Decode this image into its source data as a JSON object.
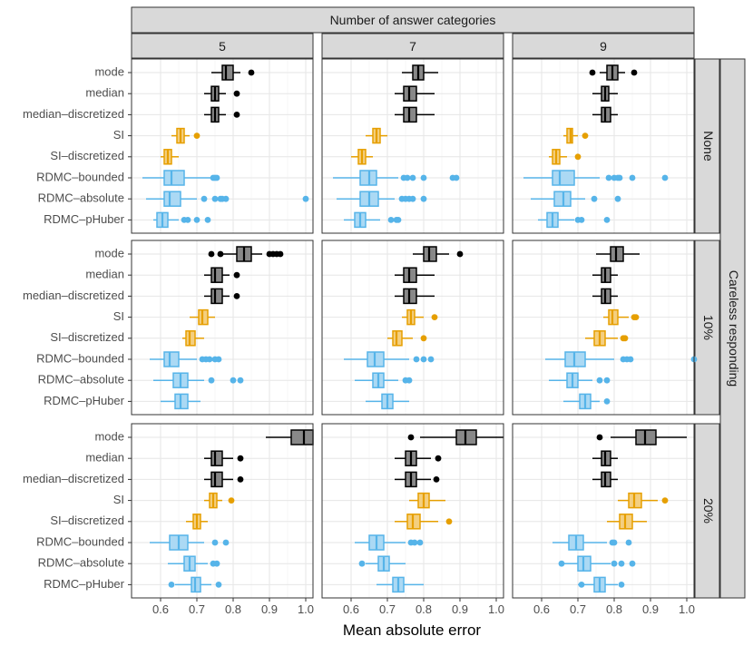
{
  "chart_data": {
    "type": "boxplot",
    "xlabel": "Mean absolute error",
    "column_facet_title": "Number of answer categories",
    "row_facet_title": "Careless responding",
    "columns": [
      "5",
      "7",
      "9"
    ],
    "rows": [
      "None",
      "10%",
      "20%"
    ],
    "categories": [
      "mode",
      "median",
      "median–discretized",
      "SI",
      "SI–discretized",
      "RDMC–bounded",
      "RDMC–absolute",
      "RDMC–pHuber"
    ],
    "category_colors": {
      "mode": "#000000",
      "median": "#000000",
      "median–discretized": "#000000",
      "SI": "#E69F00",
      "SI–discretized": "#E69F00",
      "RDMC–bounded": "#56B4E9",
      "RDMC–absolute": "#56B4E9",
      "RDMC–pHuber": "#56B4E9"
    },
    "xlim": [
      0.52,
      1.02
    ],
    "xticks": [
      "0.6",
      "0.7",
      "0.8",
      "0.9",
      "1.0"
    ],
    "box_fields": [
      "min",
      "q1",
      "median",
      "q3",
      "max",
      "outliers"
    ],
    "panels": {
      "None": {
        "5": [
          [
            0.74,
            0.77,
            0.78,
            0.8,
            0.82,
            [
              0.85
            ]
          ],
          [
            0.72,
            0.74,
            0.75,
            0.76,
            0.78,
            [
              0.81
            ]
          ],
          [
            0.72,
            0.74,
            0.75,
            0.76,
            0.78,
            [
              0.81
            ]
          ],
          [
            0.63,
            0.645,
            0.655,
            0.665,
            0.68,
            [
              0.7
            ]
          ],
          [
            0.6,
            0.61,
            0.62,
            0.63,
            0.65,
            []
          ],
          [
            0.55,
            0.61,
            0.63,
            0.665,
            0.74,
            [
              0.745,
              0.75,
              0.755
            ]
          ],
          [
            0.56,
            0.61,
            0.625,
            0.655,
            0.7,
            [
              0.72,
              0.75,
              0.765,
              0.77,
              0.78,
              1.0
            ]
          ],
          [
            0.58,
            0.59,
            0.605,
            0.62,
            0.65,
            [
              0.665,
              0.675,
              0.7,
              0.73
            ]
          ]
        ],
        "7": [
          [
            0.74,
            0.77,
            0.785,
            0.8,
            0.84,
            []
          ],
          [
            0.72,
            0.745,
            0.76,
            0.78,
            0.83,
            []
          ],
          [
            0.72,
            0.745,
            0.76,
            0.78,
            0.83,
            []
          ],
          [
            0.64,
            0.66,
            0.67,
            0.68,
            0.7,
            []
          ],
          [
            0.6,
            0.62,
            0.63,
            0.64,
            0.66,
            []
          ],
          [
            0.55,
            0.625,
            0.65,
            0.67,
            0.73,
            [
              0.745,
              0.755,
              0.77,
              0.8,
              0.88,
              0.89
            ]
          ],
          [
            0.56,
            0.625,
            0.65,
            0.675,
            0.72,
            [
              0.74,
              0.75,
              0.76,
              0.77,
              0.8
            ]
          ],
          [
            0.58,
            0.61,
            0.625,
            0.64,
            0.68,
            [
              0.71,
              0.725,
              0.73
            ]
          ]
        ],
        "9": [
          [
            0.76,
            0.78,
            0.795,
            0.81,
            0.83,
            [
              0.74,
              0.855
            ]
          ],
          [
            0.74,
            0.765,
            0.775,
            0.785,
            0.81,
            []
          ],
          [
            0.74,
            0.765,
            0.775,
            0.79,
            0.81,
            []
          ],
          [
            0.66,
            0.67,
            0.68,
            0.685,
            0.7,
            [
              0.72
            ]
          ],
          [
            0.62,
            0.63,
            0.64,
            0.65,
            0.67,
            [
              0.7
            ]
          ],
          [
            0.55,
            0.63,
            0.65,
            0.69,
            0.76,
            [
              0.785,
              0.8,
              0.81,
              0.815,
              0.85,
              0.94
            ]
          ],
          [
            0.57,
            0.635,
            0.66,
            0.68,
            0.72,
            [
              0.745,
              0.81
            ]
          ],
          [
            0.59,
            0.615,
            0.63,
            0.645,
            0.69,
            [
              0.7,
              0.71,
              0.78
            ]
          ]
        ]
      },
      "10%": {
        "5": [
          [
            0.76,
            0.81,
            0.83,
            0.85,
            0.88,
            [
              0.74,
              0.765,
              0.9,
              0.91,
              0.92,
              0.93
            ]
          ],
          [
            0.72,
            0.74,
            0.75,
            0.77,
            0.79,
            [
              0.81
            ]
          ],
          [
            0.72,
            0.74,
            0.75,
            0.77,
            0.79,
            [
              0.81
            ]
          ],
          [
            0.68,
            0.705,
            0.715,
            0.73,
            0.75,
            []
          ],
          [
            0.66,
            0.67,
            0.68,
            0.695,
            0.72,
            []
          ],
          [
            0.57,
            0.61,
            0.625,
            0.65,
            0.7,
            [
              0.715,
              0.725,
              0.735,
              0.75,
              0.76
            ]
          ],
          [
            0.58,
            0.635,
            0.655,
            0.675,
            0.72,
            [
              0.74,
              0.8,
              0.82
            ]
          ],
          [
            0.6,
            0.64,
            0.655,
            0.675,
            0.71,
            []
          ]
        ],
        "7": [
          [
            0.77,
            0.8,
            0.815,
            0.835,
            0.87,
            [
              0.9
            ]
          ],
          [
            0.72,
            0.745,
            0.76,
            0.78,
            0.83,
            []
          ],
          [
            0.72,
            0.745,
            0.76,
            0.78,
            0.83,
            []
          ],
          [
            0.74,
            0.755,
            0.765,
            0.775,
            0.8,
            [
              0.83
            ]
          ],
          [
            0.7,
            0.715,
            0.725,
            0.74,
            0.77,
            [
              0.8
            ]
          ],
          [
            0.58,
            0.645,
            0.665,
            0.69,
            0.76,
            [
              0.78,
              0.8,
              0.82
            ]
          ],
          [
            0.61,
            0.66,
            0.675,
            0.69,
            0.73,
            [
              0.75,
              0.76
            ]
          ],
          [
            0.64,
            0.685,
            0.7,
            0.715,
            0.76,
            []
          ]
        ],
        "9": [
          [
            0.75,
            0.79,
            0.805,
            0.825,
            0.87,
            []
          ],
          [
            0.74,
            0.765,
            0.775,
            0.79,
            0.81,
            []
          ],
          [
            0.74,
            0.765,
            0.775,
            0.79,
            0.81,
            []
          ],
          [
            0.77,
            0.785,
            0.795,
            0.81,
            0.84,
            [
              0.855,
              0.86
            ]
          ],
          [
            0.72,
            0.745,
            0.76,
            0.775,
            0.81,
            [
              0.825,
              0.83
            ]
          ],
          [
            0.61,
            0.665,
            0.69,
            0.72,
            0.8,
            [
              0.825,
              0.835,
              0.845,
              1.02
            ]
          ],
          [
            0.62,
            0.67,
            0.685,
            0.7,
            0.74,
            [
              0.76,
              0.78
            ]
          ],
          [
            0.66,
            0.705,
            0.72,
            0.735,
            0.76,
            [
              0.78
            ]
          ]
        ]
      },
      "20%": {
        "5": [
          [
            0.89,
            0.96,
            0.995,
            1.02,
            1.02,
            []
          ],
          [
            0.72,
            0.74,
            0.75,
            0.77,
            0.8,
            [
              0.82
            ]
          ],
          [
            0.72,
            0.74,
            0.75,
            0.77,
            0.8,
            [
              0.82
            ]
          ],
          [
            0.72,
            0.735,
            0.745,
            0.755,
            0.77,
            [
              0.795
            ]
          ],
          [
            0.67,
            0.69,
            0.7,
            0.71,
            0.73,
            []
          ],
          [
            0.57,
            0.625,
            0.65,
            0.675,
            0.72,
            [
              0.75,
              0.78
            ]
          ],
          [
            0.62,
            0.665,
            0.68,
            0.695,
            0.73,
            [
              0.745,
              0.755
            ]
          ],
          [
            0.64,
            0.685,
            0.695,
            0.71,
            0.74,
            [
              0.63,
              0.76
            ]
          ]
        ],
        "7": [
          [
            0.79,
            0.89,
            0.915,
            0.945,
            1.02,
            [
              0.765
            ]
          ],
          [
            0.72,
            0.75,
            0.765,
            0.78,
            0.82,
            [
              0.84
            ]
          ],
          [
            0.72,
            0.75,
            0.765,
            0.78,
            0.82,
            [
              0.835
            ]
          ],
          [
            0.76,
            0.785,
            0.8,
            0.815,
            0.86,
            []
          ],
          [
            0.72,
            0.755,
            0.77,
            0.79,
            0.84,
            [
              0.87
            ]
          ],
          [
            0.61,
            0.65,
            0.67,
            0.69,
            0.75,
            [
              0.765,
              0.775,
              0.79
            ]
          ],
          [
            0.64,
            0.675,
            0.69,
            0.705,
            0.75,
            [
              0.63
            ]
          ],
          [
            0.67,
            0.715,
            0.73,
            0.745,
            0.8,
            []
          ]
        ],
        "9": [
          [
            0.79,
            0.86,
            0.885,
            0.915,
            1.0,
            [
              0.76
            ]
          ],
          [
            0.74,
            0.765,
            0.775,
            0.79,
            0.81,
            []
          ],
          [
            0.74,
            0.765,
            0.775,
            0.79,
            0.81,
            []
          ],
          [
            0.81,
            0.84,
            0.855,
            0.875,
            0.92,
            [
              0.94
            ]
          ],
          [
            0.78,
            0.815,
            0.83,
            0.85,
            0.89,
            []
          ],
          [
            0.63,
            0.675,
            0.695,
            0.715,
            0.78,
            [
              0.795,
              0.8,
              0.84
            ]
          ],
          [
            0.66,
            0.7,
            0.715,
            0.735,
            0.79,
            [
              0.655,
              0.8,
              0.82,
              0.85
            ]
          ],
          [
            0.7,
            0.745,
            0.76,
            0.775,
            0.81,
            [
              0.82,
              0.71
            ]
          ]
        ]
      }
    }
  }
}
